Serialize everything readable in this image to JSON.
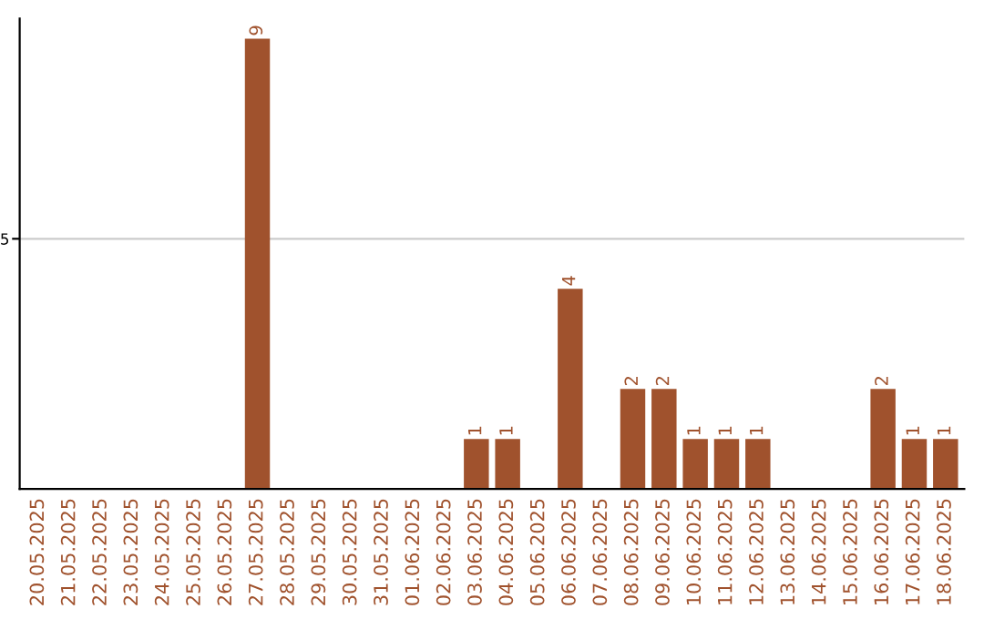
{
  "chart_data": {
    "type": "bar",
    "categories": [
      "20.05.2025",
      "21.05.2025",
      "22.05.2025",
      "23.05.2025",
      "24.05.2025",
      "25.05.2025",
      "26.05.2025",
      "27.05.2025",
      "28.05.2025",
      "29.05.2025",
      "30.05.2025",
      "31.05.2025",
      "01.06.2025",
      "02.06.2025",
      "03.06.2025",
      "04.06.2025",
      "05.06.2025",
      "06.06.2025",
      "07.06.2025",
      "08.06.2025",
      "09.06.2025",
      "10.06.2025",
      "11.06.2025",
      "12.06.2025",
      "13.06.2025",
      "14.06.2025",
      "15.06.2025",
      "16.06.2025",
      "17.06.2025",
      "18.06.2025"
    ],
    "values": [
      0,
      0,
      0,
      0,
      0,
      0,
      0,
      9,
      0,
      0,
      0,
      0,
      0,
      0,
      1,
      1,
      0,
      4,
      0,
      2,
      2,
      1,
      1,
      1,
      0,
      0,
      0,
      2,
      1,
      1
    ],
    "value_labels": [
      null,
      null,
      null,
      null,
      null,
      null,
      null,
      "9",
      null,
      null,
      null,
      null,
      null,
      null,
      "1",
      "1",
      null,
      "4",
      null,
      "2",
      "2",
      "1",
      "1",
      "1",
      null,
      null,
      null,
      "2",
      "1",
      "1"
    ],
    "color": "#a0522d",
    "ylim": [
      0,
      9.4
    ],
    "yticks": [
      5
    ],
    "grid": "y"
  }
}
